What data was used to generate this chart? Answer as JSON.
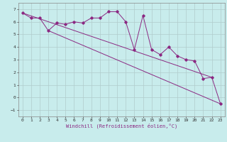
{
  "xlabel": "Windchill (Refroidissement éolien,°C)",
  "x_values": [
    0,
    1,
    2,
    3,
    4,
    5,
    6,
    7,
    8,
    9,
    10,
    11,
    12,
    13,
    14,
    15,
    16,
    17,
    18,
    19,
    20,
    21,
    22,
    23
  ],
  "line1": [
    6.7,
    6.3,
    6.3,
    5.3,
    5.9,
    5.8,
    6.0,
    5.9,
    6.3,
    6.3,
    6.8,
    6.8,
    6.0,
    3.8,
    6.5,
    3.8,
    3.4,
    4.0,
    3.3,
    3.0,
    2.9,
    1.5,
    1.6,
    -0.5
  ],
  "trend1_x": [
    0,
    22
  ],
  "trend1_y": [
    6.7,
    1.6
  ],
  "trend2_x": [
    3,
    23
  ],
  "trend2_y": [
    5.3,
    -0.5
  ],
  "line_color": "#8B2882",
  "bg_color": "#c8ecec",
  "grid_color": "#b0cccc",
  "ylim": [
    -1.5,
    7.5
  ],
  "xlim": [
    -0.5,
    23.5
  ],
  "yticks": [
    -1,
    0,
    1,
    2,
    3,
    4,
    5,
    6,
    7
  ],
  "xticks": [
    0,
    1,
    2,
    3,
    4,
    5,
    6,
    7,
    8,
    9,
    10,
    11,
    12,
    13,
    14,
    15,
    16,
    17,
    18,
    19,
    20,
    21,
    22,
    23
  ]
}
